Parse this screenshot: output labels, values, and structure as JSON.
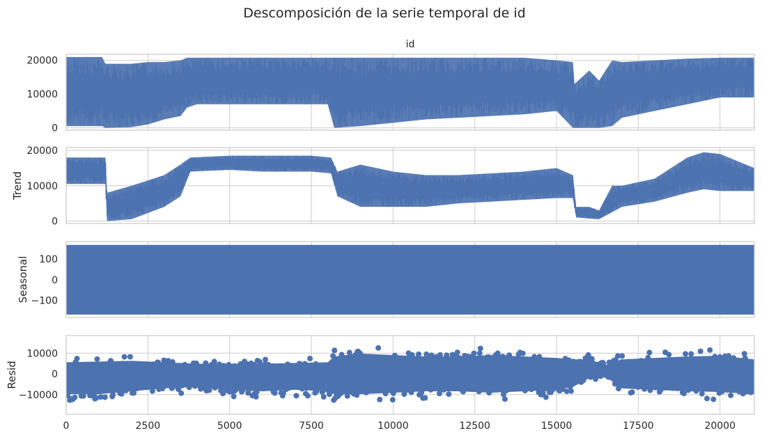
{
  "chart_data": {
    "type": "line",
    "title": "Descomposición de la serie temporal de id",
    "colors": {
      "series": "#4c72b0",
      "grid": "#cccccc",
      "frame": "#cccccc",
      "text": "#262626"
    },
    "shared_x": {
      "xlim": [
        0,
        21050
      ],
      "ticks": [
        0,
        2500,
        5000,
        7500,
        10000,
        12500,
        15000,
        17500,
        20000
      ],
      "tick_labels": [
        "0",
        "2500",
        "5000",
        "7500",
        "10000",
        "12500",
        "15000",
        "17500",
        "20000"
      ]
    },
    "panels": [
      {
        "key": "observed",
        "subplot_title": "id",
        "ylabel": "",
        "type": "line",
        "ylim": [
          -700,
          21800
        ],
        "yticks": [
          0,
          10000,
          20000
        ],
        "ytick_labels": [
          "0",
          "10000",
          "20000"
        ],
        "envelope": {
          "x": [
            0,
            1100,
            1200,
            2000,
            2500,
            3000,
            3500,
            3700,
            4000,
            5000,
            6000,
            7000,
            8000,
            8200,
            9000,
            10000,
            11000,
            12000,
            13000,
            14000,
            15000,
            15500,
            15550,
            16000,
            16300,
            16700,
            17000,
            18000,
            19000,
            20000,
            21050
          ],
          "upper": [
            21000,
            21000,
            19000,
            19000,
            19500,
            19500,
            20000,
            20800,
            20800,
            20800,
            20800,
            20800,
            20800,
            20800,
            20800,
            20800,
            20800,
            20800,
            20800,
            20800,
            20000,
            19500,
            13000,
            17000,
            14000,
            20000,
            19500,
            20000,
            20500,
            20800,
            20800
          ],
          "lower": [
            500,
            500,
            0,
            200,
            1000,
            2500,
            3500,
            6000,
            7000,
            7000,
            7000,
            7000,
            7000,
            0,
            500,
            1500,
            2500,
            3000,
            3500,
            4000,
            5000,
            0,
            0,
            0,
            0,
            500,
            3000,
            5000,
            7000,
            9000,
            9000
          ]
        }
      },
      {
        "key": "trend",
        "subplot_title": "",
        "ylabel": "Trend",
        "type": "line",
        "ylim": [
          -700,
          20800
        ],
        "yticks": [
          0,
          10000,
          20000
        ],
        "ytick_labels": [
          "0",
          "10000",
          "20000"
        ],
        "envelope": {
          "x": [
            0,
            1200,
            1250,
            2000,
            3000,
            3500,
            3800,
            5000,
            6000,
            7500,
            8100,
            8300,
            9000,
            10000,
            11000,
            12000,
            13000,
            14000,
            15000,
            15500,
            15600,
            16000,
            16300,
            16700,
            17000,
            18000,
            19000,
            19500,
            20000,
            21050
          ],
          "upper": [
            18000,
            18000,
            8000,
            10000,
            13000,
            16000,
            18000,
            18500,
            18500,
            18500,
            18000,
            14000,
            16000,
            14000,
            13000,
            13000,
            13500,
            14000,
            15000,
            13000,
            4000,
            4000,
            3000,
            10000,
            10000,
            12000,
            18000,
            19500,
            19000,
            15000
          ],
          "lower": [
            10500,
            10500,
            0,
            500,
            4000,
            7000,
            14000,
            14500,
            14000,
            14000,
            13500,
            7000,
            4000,
            4000,
            4000,
            5000,
            5500,
            6000,
            6500,
            6500,
            1000,
            700,
            500,
            2500,
            4000,
            5500,
            8000,
            9000,
            8500,
            8500
          ]
        }
      },
      {
        "key": "seasonal",
        "subplot_title": "",
        "ylabel": "Seasonal",
        "type": "line",
        "ylim": [
          -182,
          184
        ],
        "yticks": [
          -100,
          0,
          100
        ],
        "ytick_labels": [
          "−100",
          "0",
          "100"
        ],
        "envelope": {
          "x": [
            0,
            21050
          ],
          "upper": [
            168,
            168
          ],
          "lower": [
            -168,
            -168
          ]
        }
      },
      {
        "key": "resid",
        "subplot_title": "",
        "ylabel": "Resid",
        "type": "scatter",
        "ylim": [
          -19500,
          18500
        ],
        "yticks": [
          -10000,
          0,
          10000
        ],
        "ytick_labels": [
          "−10000",
          "0",
          "10000"
        ],
        "envelope": {
          "x": [
            0,
            1000,
            2000,
            3000,
            4000,
            5000,
            6000,
            7000,
            8000,
            8200,
            9000,
            10000,
            11000,
            12000,
            13000,
            14000,
            15000,
            15500,
            16000,
            16500,
            17000,
            18000,
            19000,
            20000,
            21050
          ],
          "upper": [
            8000,
            8500,
            9000,
            8000,
            7000,
            7000,
            7000,
            7500,
            8000,
            12000,
            14000,
            13000,
            12000,
            12000,
            13000,
            12000,
            11000,
            10000,
            10000,
            6000,
            10000,
            11000,
            12000,
            12500,
            10000
          ],
          "lower": [
            -14000,
            -14000,
            -12000,
            -10000,
            -9000,
            -11000,
            -12000,
            -11000,
            -12000,
            -14000,
            -14000,
            -13000,
            -12000,
            -12000,
            -13000,
            -12000,
            -11000,
            -9000,
            -3000,
            -2000,
            -10000,
            -11000,
            -12000,
            -12500,
            -14000
          ]
        }
      }
    ]
  }
}
